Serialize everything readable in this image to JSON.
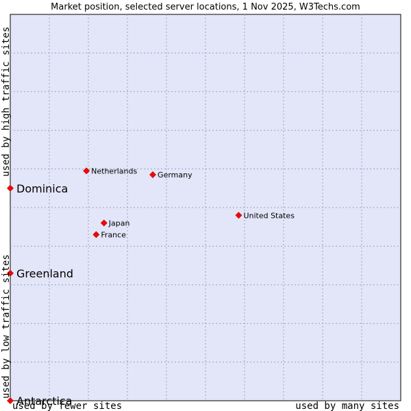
{
  "chart_data": {
    "type": "scatter",
    "title": "Market position, selected server locations, 1 Nov 2025, W3Techs.com",
    "xlabel_low": "used by fewer sites",
    "xlabel_high": "used by many sites",
    "ylabel_low": "used by low traffic sites",
    "ylabel_high": "used by high traffic sites",
    "xlim": [
      0,
      10
    ],
    "ylim": [
      0,
      10
    ],
    "grid": true,
    "point_color": "#ff0000",
    "plot_background": "#e3e5f8",
    "points": [
      {
        "label": "Dominica",
        "x": 0.0,
        "y": 5.5,
        "emphasis": true
      },
      {
        "label": "Greenland",
        "x": 0.0,
        "y": 3.3,
        "emphasis": true
      },
      {
        "label": "Antarctica",
        "x": 0.0,
        "y": 0.0,
        "emphasis": true
      },
      {
        "label": "Netherlands",
        "x": 1.95,
        "y": 5.95,
        "emphasis": false
      },
      {
        "label": "Germany",
        "x": 3.65,
        "y": 5.85,
        "emphasis": false
      },
      {
        "label": "United States",
        "x": 5.85,
        "y": 4.8,
        "emphasis": false
      },
      {
        "label": "Japan",
        "x": 2.4,
        "y": 4.6,
        "emphasis": false
      },
      {
        "label": "France",
        "x": 2.2,
        "y": 4.3,
        "emphasis": false
      }
    ]
  }
}
